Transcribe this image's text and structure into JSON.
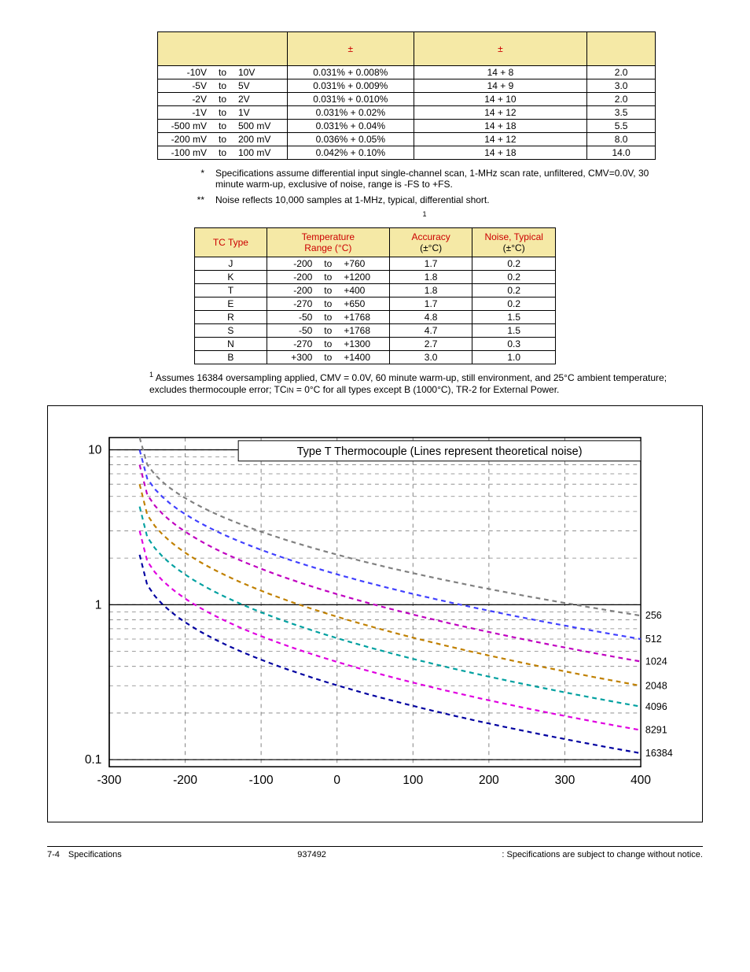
{
  "table1": {
    "headers": [
      "",
      "±",
      "±",
      ""
    ],
    "rows": [
      {
        "lo": "-10V",
        "to": "to",
        "hi": "10V",
        "acc": "0.031% + 0.008%",
        "res": "14 + 8",
        "noise": "2.0"
      },
      {
        "lo": "-5V",
        "to": "to",
        "hi": "5V",
        "acc": "0.031% + 0.009%",
        "res": "14 + 9",
        "noise": "3.0"
      },
      {
        "lo": "-2V",
        "to": "to",
        "hi": "2V",
        "acc": "0.031% + 0.010%",
        "res": "14 + 10",
        "noise": "2.0"
      },
      {
        "lo": "-1V",
        "to": "to",
        "hi": "1V",
        "acc": "0.031% + 0.02%",
        "res": "14 + 12",
        "noise": "3.5"
      },
      {
        "lo": "-500 mV",
        "to": "to",
        "hi": "500 mV",
        "acc": "0.031% + 0.04%",
        "res": "14 + 18",
        "noise": "5.5"
      },
      {
        "lo": "-200 mV",
        "to": "to",
        "hi": "200 mV",
        "acc": "0.036% + 0.05%",
        "res": "14 + 12",
        "noise": "8.0"
      },
      {
        "lo": "-100 mV",
        "to": "to",
        "hi": "100 mV",
        "acc": "0.042% + 0.10%",
        "res": "14 + 18",
        "noise": "14.0"
      }
    ],
    "note1_mark": "*",
    "note1": "Specifications assume differential input single-channel scan, 1-MHz scan rate, unfiltered, CMV=0.0V, 30 minute warm-up, exclusive of noise, range is -FS to +FS.",
    "note2_mark": "**",
    "note2": "Noise reflects 10,000 samples at 1-MHz, typical, differential short.",
    "caption_sup": "1"
  },
  "table2": {
    "headers": {
      "tc": "TC Type",
      "temp_top": "Temperature",
      "temp_bot": "Range (°C)",
      "acc_top": "Accuracy",
      "acc_bot": "(±°C)",
      "noise_top": "Noise,",
      "noise_typ": " Typical",
      "noise_bot": "(±°C)"
    },
    "rows": [
      {
        "type": "J",
        "lo": "-200",
        "to": "to",
        "hi": "+760",
        "acc": "1.7",
        "noise": "0.2"
      },
      {
        "type": "K",
        "lo": "-200",
        "to": "to",
        "hi": "+1200",
        "acc": "1.8",
        "noise": "0.2"
      },
      {
        "type": "T",
        "lo": "-200",
        "to": "to",
        "hi": "+400",
        "acc": "1.8",
        "noise": "0.2"
      },
      {
        "type": "E",
        "lo": "-270",
        "to": "to",
        "hi": "+650",
        "acc": "1.7",
        "noise": "0.2"
      },
      {
        "type": "R",
        "lo": "-50",
        "to": "to",
        "hi": "+1768",
        "acc": "4.8",
        "noise": "1.5"
      },
      {
        "type": "S",
        "lo": "-50",
        "to": "to",
        "hi": "+1768",
        "acc": "4.7",
        "noise": "1.5"
      },
      {
        "type": "N",
        "lo": "-270",
        "to": "to",
        "hi": "+1300",
        "acc": "2.7",
        "noise": "0.3"
      },
      {
        "type": "B",
        "lo": "+300",
        "to": "to",
        "hi": "+1400",
        "acc": "3.0",
        "noise": "1.0"
      }
    ],
    "footnote_sup": "1",
    "footnote": " Assumes 16384 oversampling applied, CMV = 0.0V, 60 minute warm-up, still environment, and 25°C ambient temperature; excludes thermocouple error; TC",
    "footnote_sub": "IN",
    "footnote_tail": " = 0°C for all types except B (1000°C), TR-2 for External Power."
  },
  "chart": {
    "title": "Type T Thermocouple  (Lines represent theoretical noise)",
    "x_ticks": [
      -300,
      -200,
      -100,
      0,
      100,
      200,
      300,
      400
    ],
    "x_min": -300,
    "x_max": 400,
    "y_ticks_labels": [
      "10",
      "1",
      "0.1"
    ],
    "y_log_min": 0.09,
    "y_log_max": 12,
    "grid_color": "#808080",
    "axis_color": "#000",
    "title_fontsize": 15,
    "tick_fontsize": 16,
    "series": [
      {
        "label": "256",
        "color": "#808080",
        "y400": 0.85,
        "y_neg260": 12
      },
      {
        "label": "512",
        "color": "#4040ff",
        "y400": 0.6,
        "y_neg260": 10
      },
      {
        "label": "1024",
        "color": "#c000c0",
        "y400": 0.43,
        "y_neg260": 8
      },
      {
        "label": "2048",
        "color": "#c08000",
        "y400": 0.3,
        "y_neg260": 6
      },
      {
        "label": "4096",
        "color": "#00a0a0",
        "y400": 0.22,
        "y_neg260": 4.3
      },
      {
        "label": "8291",
        "color": "#e000e0",
        "y400": 0.155,
        "y_neg260": 3
      },
      {
        "label": "16384",
        "color": "#0000a0",
        "y400": 0.11,
        "y_neg260": 2.1
      }
    ],
    "dash": [
      6,
      5
    ],
    "line_width": 2.2,
    "background": "#ffffff"
  },
  "footer": {
    "left": "7-4 Specifications",
    "mid": "937492",
    "right": ": Specifications are subject to change without notice."
  }
}
